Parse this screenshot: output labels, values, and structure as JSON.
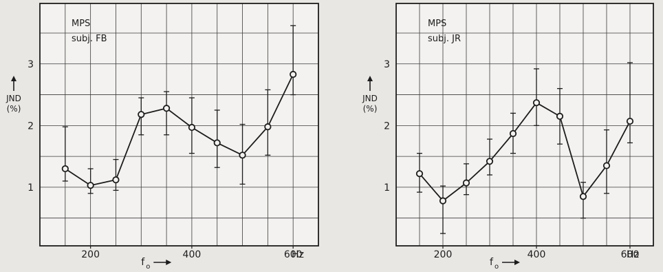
{
  "chart_data": [
    {
      "type": "line",
      "annotation_lines": [
        "MPS",
        "subj. FB"
      ],
      "ylabel_lines": [
        "JND",
        "(%)"
      ],
      "xlabel": "f",
      "xlabel_sub": "o",
      "x_unit": "Hz",
      "x_ticks": [
        200,
        400,
        600
      ],
      "y_ticks": [
        1,
        2,
        3
      ],
      "xlim": [
        100,
        650
      ],
      "ylim": [
        0.05,
        3.98
      ],
      "grid": true,
      "x": [
        150,
        200,
        250,
        300,
        350,
        400,
        450,
        500,
        550,
        600
      ],
      "y": [
        1.3,
        1.03,
        1.12,
        2.18,
        2.28,
        1.97,
        1.72,
        1.52,
        1.98,
        2.83
      ],
      "err_low": [
        1.1,
        0.9,
        0.95,
        1.85,
        1.85,
        1.55,
        1.32,
        1.05,
        1.52,
        2.5
      ],
      "err_high": [
        1.98,
        1.3,
        1.45,
        2.45,
        2.55,
        2.45,
        2.25,
        2.02,
        2.58,
        3.62
      ]
    },
    {
      "type": "line",
      "annotation_lines": [
        "MPS",
        "subj. JR"
      ],
      "ylabel_lines": [
        "JND",
        "(%)"
      ],
      "xlabel": "f",
      "xlabel_sub": "o",
      "x_unit": "Hz",
      "x_ticks": [
        200,
        400,
        600
      ],
      "y_ticks": [
        1,
        2,
        3
      ],
      "xlim": [
        100,
        650
      ],
      "ylim": [
        0.05,
        3.98
      ],
      "grid": true,
      "x": [
        150,
        200,
        250,
        300,
        350,
        400,
        450,
        500,
        550,
        600
      ],
      "y": [
        1.22,
        0.78,
        1.07,
        1.42,
        1.87,
        2.37,
        2.15,
        0.85,
        1.35,
        2.07
      ],
      "err_low": [
        0.92,
        0.25,
        0.88,
        1.2,
        1.55,
        2.0,
        1.7,
        0.5,
        0.9,
        1.72
      ],
      "err_high": [
        1.55,
        1.02,
        1.38,
        1.78,
        2.2,
        2.92,
        2.6,
        1.08,
        1.93,
        3.02
      ]
    }
  ]
}
